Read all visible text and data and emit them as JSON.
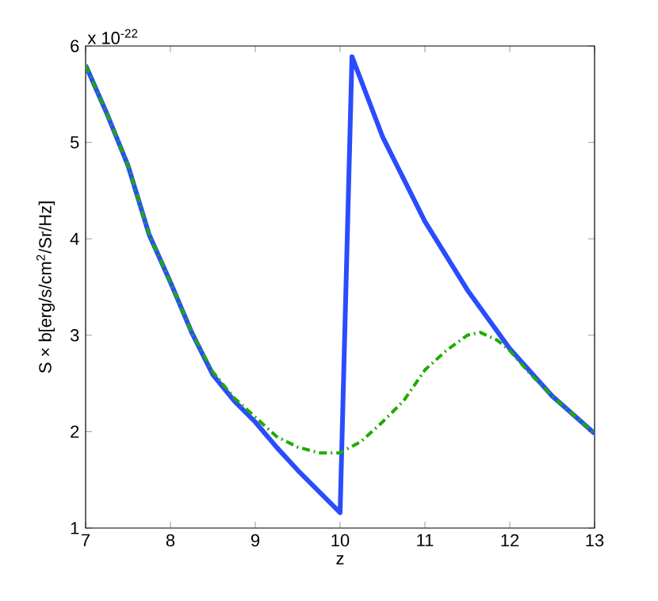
{
  "chart_data": {
    "type": "line",
    "xlabel": "z",
    "ylabel": "S × b[erg/s/cm$^{2}$/Sr/Hz]",
    "annotations": [
      "x 10$^{-22}$"
    ],
    "xlim": [
      7,
      13
    ],
    "ylim": [
      1,
      6
    ],
    "xticks": [
      7,
      8,
      9,
      10,
      11,
      12,
      13
    ],
    "yticks": [
      1,
      2,
      3,
      4,
      5,
      6
    ],
    "grid": false,
    "series": [
      {
        "color": "#2a4cff",
        "line_style": "solid",
        "x": [
          7,
          7.25,
          7.5,
          7.75,
          8,
          8.25,
          8.5,
          8.75,
          9,
          9.25,
          9.5,
          9.75,
          10,
          10.14,
          10.5,
          11,
          11.5,
          12,
          12.5,
          13
        ],
        "values": [
          5.8,
          5.3,
          4.76,
          4.04,
          3.55,
          3.03,
          2.59,
          2.32,
          2.1,
          1.84,
          1.6,
          1.38,
          1.16,
          5.89,
          5.06,
          4.18,
          3.47,
          2.86,
          2.37,
          1.98
        ]
      },
      {
        "color": "#1faa00",
        "line_style": "dashdot",
        "x": [
          7,
          7.25,
          7.5,
          7.75,
          8,
          8.25,
          8.5,
          8.75,
          9,
          9.25,
          9.5,
          9.75,
          10,
          10.25,
          10.5,
          10.75,
          11,
          11.25,
          11.5,
          11.65,
          11.85,
          12,
          12.25,
          12.5,
          13
        ],
        "values": [
          5.8,
          5.3,
          4.76,
          4.04,
          3.55,
          3.03,
          2.62,
          2.35,
          2.15,
          1.95,
          1.84,
          1.78,
          1.78,
          1.9,
          2.1,
          2.32,
          2.64,
          2.84,
          3.0,
          3.03,
          2.95,
          2.84,
          2.59,
          2.37,
          1.98
        ]
      }
    ]
  }
}
